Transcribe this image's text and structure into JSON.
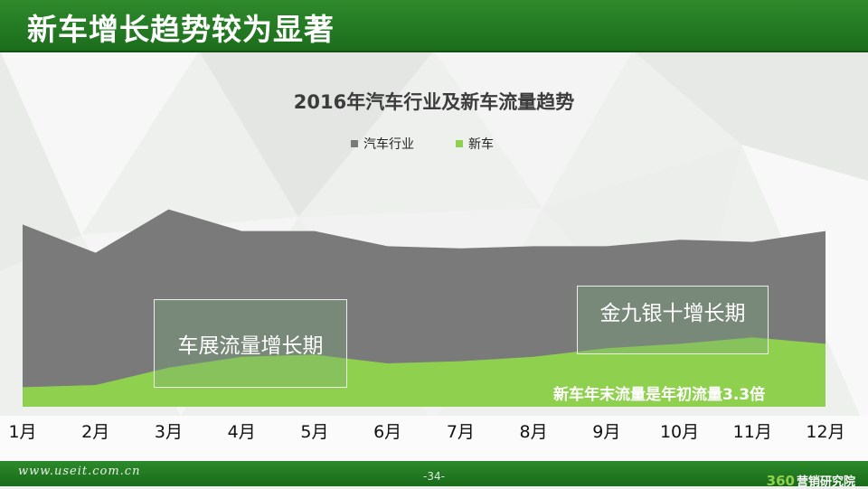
{
  "header": {
    "title": "新车增长趋势较为显著"
  },
  "chart_data": {
    "type": "area",
    "title": "2016年汽车行业及新车流量趋势",
    "categories": [
      "1月",
      "2月",
      "3月",
      "4月",
      "5月",
      "6月",
      "7月",
      "8月",
      "9月",
      "10月",
      "11月",
      "12月"
    ],
    "series": [
      {
        "name": "汽车行业",
        "color": "#7a7a7a",
        "values": [
          0.84,
          0.71,
          0.91,
          0.81,
          0.81,
          0.74,
          0.73,
          0.74,
          0.74,
          0.77,
          0.76,
          0.81
        ]
      },
      {
        "name": "新车",
        "color": "#8fd14f",
        "values": [
          0.09,
          0.1,
          0.18,
          0.23,
          0.24,
          0.2,
          0.21,
          0.23,
          0.27,
          0.29,
          0.32,
          0.29
        ]
      }
    ],
    "ylim": [
      0,
      1
    ],
    "legend": "top",
    "annotations": [
      "车展流量增长期",
      "金九银十增长期",
      "新车年末流量是年初流量3.3倍"
    ]
  },
  "footer": {
    "url": "www.useit.com.cn",
    "page": "-34-",
    "brand_num": "360",
    "brand_text": "营销研究院"
  }
}
